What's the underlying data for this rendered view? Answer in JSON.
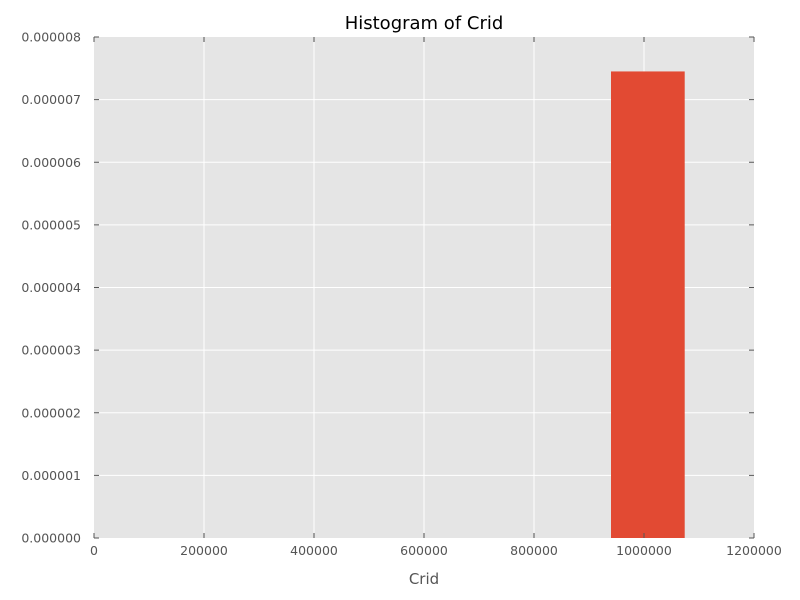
{
  "chart_data": {
    "type": "bar",
    "title": "Histogram of Crid",
    "xlabel": "Crid",
    "ylabel": "",
    "xlim": [
      0,
      1200000
    ],
    "ylim": [
      0,
      8e-06
    ],
    "x_ticks": [
      "0",
      "200000",
      "400000",
      "600000",
      "800000",
      "1000000",
      "1200000"
    ],
    "y_ticks": [
      "0.000000",
      "0.000001",
      "0.000002",
      "0.000003",
      "0.000004",
      "0.000005",
      "0.000006",
      "0.000007",
      "0.000008"
    ],
    "bins": [
      {
        "x_start": 940000,
        "x_end": 1074000,
        "value": 7.45e-06
      }
    ],
    "grid": true,
    "legend": "none",
    "colors": {
      "bar": "#E24A33",
      "plot_background": "#E5E5E5",
      "grid": "#FFFFFF"
    }
  }
}
